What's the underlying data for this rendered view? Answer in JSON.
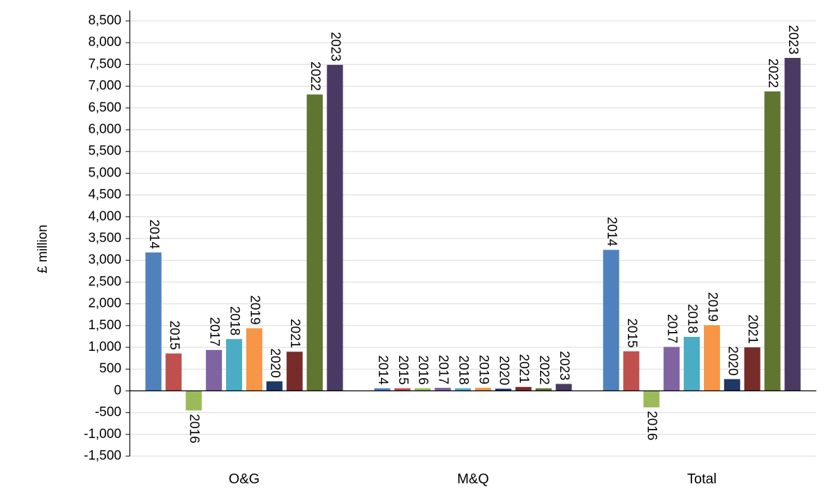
{
  "chart_data": {
    "type": "bar",
    "ylabel": "£ million",
    "ylim": [
      -1500,
      8500
    ],
    "ytick_step": 500,
    "yticks": [
      "8,500",
      "8,000",
      "7,500",
      "7,000",
      "6,500",
      "6,000",
      "5,500",
      "5,000",
      "4,500",
      "4,000",
      "3,500",
      "3,000",
      "2,500",
      "2,000",
      "1,500",
      "1,000",
      "500",
      "0",
      "-500",
      "-1,000",
      "-1,500"
    ],
    "grid": true,
    "legend": "none",
    "categories": [
      "O&G",
      "M&Q",
      "Total"
    ],
    "series": [
      {
        "name": "2014",
        "color": "#4F81BD",
        "values": [
          3180,
          60,
          3240
        ]
      },
      {
        "name": "2015",
        "color": "#C0504D",
        "values": [
          860,
          60,
          910
        ]
      },
      {
        "name": "2016",
        "color": "#9BBB59",
        "values": [
          -450,
          60,
          -380
        ]
      },
      {
        "name": "2017",
        "color": "#8064A2",
        "values": [
          940,
          70,
          1010
        ]
      },
      {
        "name": "2018",
        "color": "#4BACC6",
        "values": [
          1190,
          60,
          1240
        ]
      },
      {
        "name": "2019",
        "color": "#F79646",
        "values": [
          1440,
          70,
          1510
        ]
      },
      {
        "name": "2020",
        "color": "#1F3864",
        "values": [
          220,
          50,
          270
        ]
      },
      {
        "name": "2021",
        "color": "#772C2A",
        "values": [
          900,
          90,
          1000
        ]
      },
      {
        "name": "2022",
        "color": "#5F7530",
        "values": [
          6810,
          60,
          6880
        ]
      },
      {
        "name": "2023",
        "color": "#4A3A63",
        "values": [
          7490,
          160,
          7650
        ]
      }
    ]
  }
}
